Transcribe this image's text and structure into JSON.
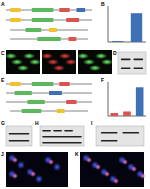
{
  "panels": [
    {
      "label": "A"
    },
    {
      "label": "B"
    },
    {
      "label": "C"
    },
    {
      "label": "D"
    },
    {
      "label": "E"
    },
    {
      "label": "F"
    },
    {
      "label": "G"
    },
    {
      "label": "H"
    },
    {
      "label": "I"
    },
    {
      "label": "J"
    },
    {
      "label": "K"
    }
  ],
  "chart_data": [
    {
      "type": "bar",
      "categories": [
        null,
        null
      ],
      "values": [
        1,
        32
      ],
      "color": "#3f6fb5",
      "ylim": [
        0,
        40
      ],
      "tick_labels": false
    },
    {
      "type": "bar",
      "categories": [
        null,
        null,
        null
      ],
      "values": [
        4,
        6,
        38
      ],
      "colors": [
        "#d9534f",
        "#d9534f",
        "#3f6fb5"
      ],
      "ylim": [
        0,
        45
      ],
      "tick_labels": false
    }
  ]
}
